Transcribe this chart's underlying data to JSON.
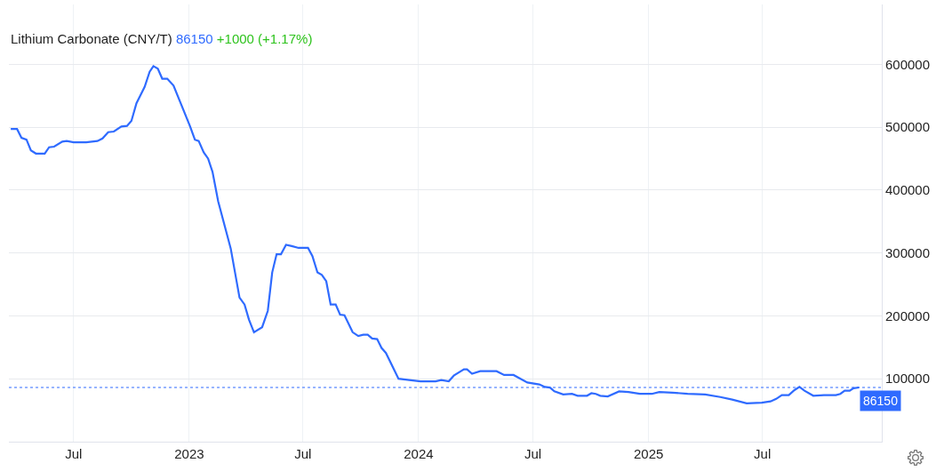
{
  "chart_data": {
    "type": "line",
    "title": "Lithium Carbonate (CNY/T)",
    "annotations": [
      "86150",
      "+1000 (+1.17%)",
      {
        "text": "86150",
        "x": "2025-12-02",
        "y": 86150
      }
    ],
    "x": [
      "2022-03-23",
      "2022-04-02",
      "2022-04-09",
      "2022-04-17",
      "2022-04-24",
      "2022-05-02",
      "2022-05-16",
      "2022-05-23",
      "2022-05-31",
      "2022-06-13",
      "2022-06-20",
      "2022-07-01",
      "2022-07-21",
      "2022-08-08",
      "2022-08-16",
      "2022-08-25",
      "2022-09-03",
      "2022-09-15",
      "2022-09-24",
      "2022-10-01",
      "2022-10-09",
      "2022-10-22",
      "2022-10-30",
      "2022-11-05",
      "2022-11-12",
      "2022-11-19",
      "2022-11-27",
      "2022-12-07",
      "2023-01-02",
      "2023-01-10",
      "2023-01-16",
      "2023-01-24",
      "2023-01-31",
      "2023-02-07",
      "2023-02-16",
      "2023-03-08",
      "2023-03-22",
      "2023-03-30",
      "2023-04-06",
      "2023-04-14",
      "2023-04-27",
      "2023-05-06",
      "2023-05-13",
      "2023-05-20",
      "2023-05-27",
      "2023-06-04",
      "2023-06-13",
      "2023-06-24",
      "2023-07-09",
      "2023-07-16",
      "2023-07-24",
      "2023-07-31",
      "2023-08-07",
      "2023-08-14",
      "2023-08-22",
      "2023-08-29",
      "2023-09-05",
      "2023-09-18",
      "2023-09-27",
      "2023-10-05",
      "2023-10-12",
      "2023-10-19",
      "2023-10-27",
      "2023-11-03",
      "2023-11-10",
      "2023-11-30",
      "2023-12-17",
      "2024-01-04",
      "2024-01-28",
      "2024-02-06",
      "2024-02-18",
      "2024-02-26",
      "2024-03-13",
      "2024-03-18",
      "2024-03-26",
      "2024-04-08",
      "2024-05-04",
      "2024-05-16",
      "2024-05-31",
      "2024-06-22",
      "2024-07-11",
      "2024-07-20",
      "2024-07-28",
      "2024-08-04",
      "2024-08-18",
      "2024-09-01",
      "2024-09-10",
      "2024-09-25",
      "2024-10-02",
      "2024-10-09",
      "2024-10-16",
      "2024-10-28",
      "2024-11-15",
      "2024-11-30",
      "2024-12-18",
      "2025-01-06",
      "2025-01-18",
      "2025-02-08",
      "2025-03-04",
      "2025-04-01",
      "2025-04-25",
      "2025-05-14",
      "2025-06-06",
      "2025-06-30",
      "2025-07-14",
      "2025-07-23",
      "2025-08-01",
      "2025-08-12",
      "2025-08-21",
      "2025-08-29",
      "2025-09-06",
      "2025-09-20",
      "2025-10-07",
      "2025-10-26",
      "2025-11-02",
      "2025-11-09",
      "2025-11-17",
      "2025-11-23",
      "2025-12-02"
    ],
    "series": [
      {
        "color": "#2f6bff",
        "values": [
          497000,
          497000,
          483000,
          480000,
          463000,
          458000,
          458000,
          468000,
          469000,
          477000,
          478000,
          476000,
          476000,
          478000,
          482000,
          492000,
          493000,
          501000,
          502000,
          510000,
          538000,
          564000,
          588000,
          597000,
          593000,
          577000,
          577000,
          566000,
          502000,
          480000,
          478000,
          460000,
          450000,
          429000,
          382000,
          307000,
          229000,
          218000,
          194000,
          174000,
          182000,
          208000,
          269000,
          298000,
          298000,
          313000,
          311000,
          308000,
          308000,
          295000,
          269000,
          265000,
          255000,
          218000,
          218000,
          202000,
          201000,
          174000,
          168000,
          170000,
          170000,
          164000,
          163000,
          149000,
          141000,
          100000,
          98000,
          96000,
          96000,
          98000,
          96000,
          105000,
          115000,
          115000,
          108000,
          112000,
          112000,
          106000,
          106000,
          94000,
          91000,
          87000,
          86000,
          80000,
          75000,
          76000,
          73000,
          73000,
          77000,
          76000,
          73000,
          72000,
          80000,
          79000,
          76000,
          76000,
          79000,
          78000,
          76000,
          75000,
          71000,
          67000,
          61000,
          62000,
          64000,
          68000,
          74000,
          74000,
          82000,
          87000,
          81000,
          73000,
          74000,
          74000,
          76000,
          81000,
          81000,
          85000,
          86150
        ]
      }
    ],
    "xlim": [
      "2022-03-20",
      "2026-01-07"
    ],
    "xticks": [
      {
        "value": "2022-07-01",
        "label": "Jul"
      },
      {
        "value": "2023-01-01",
        "label": "2023"
      },
      {
        "value": "2023-07-01",
        "label": "Jul"
      },
      {
        "value": "2024-01-01",
        "label": "2024"
      },
      {
        "value": "2024-07-01",
        "label": "Jul"
      },
      {
        "value": "2025-01-01",
        "label": "2025"
      },
      {
        "value": "2025-07-01",
        "label": "Jul"
      }
    ],
    "ylim": [
      0,
      695000
    ],
    "yticks": [
      100000,
      200000,
      300000,
      400000,
      500000,
      600000
    ],
    "ref_lines": [
      {
        "axis": "y",
        "value": 86150,
        "color": "#2f6bff",
        "line_style": "dotted"
      }
    ],
    "grid": true,
    "marker": "none",
    "line_style": "solid"
  }
}
